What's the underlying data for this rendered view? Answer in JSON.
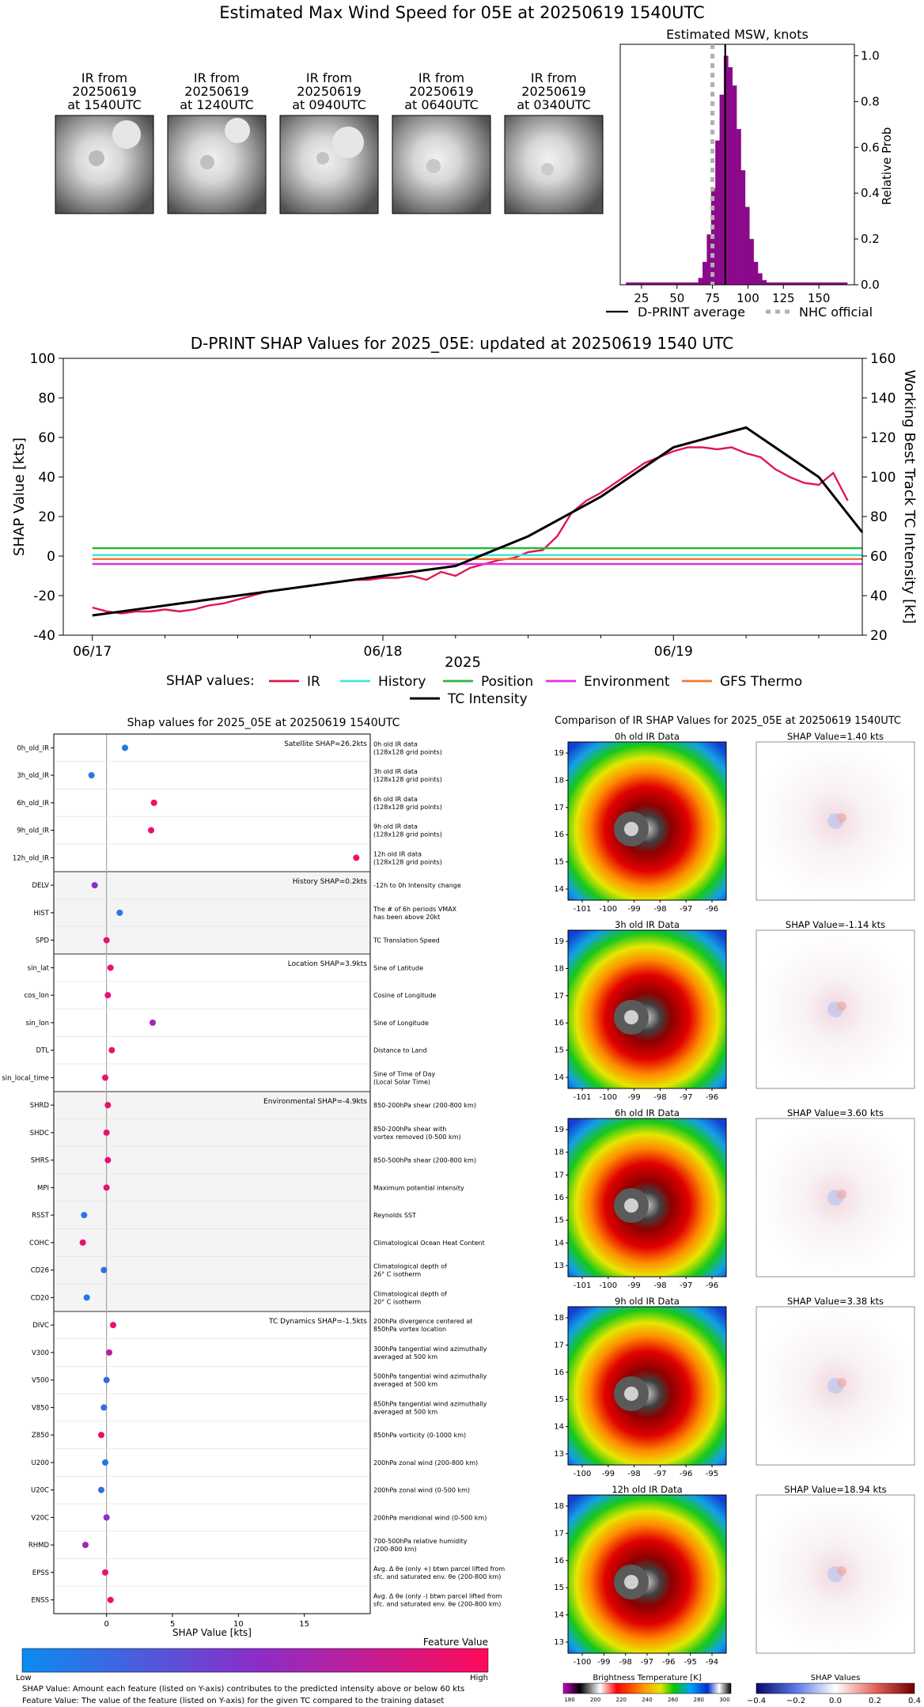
{
  "page": {
    "title": "Estimated Max Wind Speed for 05E at 20250619 1540UTC"
  },
  "ir_thumbnails": [
    {
      "line1": "IR from",
      "line2": "20250619",
      "line3": "at 1540UTC"
    },
    {
      "line1": "IR from",
      "line2": "20250619",
      "line3": "at 1240UTC"
    },
    {
      "line1": "IR from",
      "line2": "20250619",
      "line3": "at 0940UTC"
    },
    {
      "line1": "IR from",
      "line2": "20250619",
      "line3": "at 0640UTC"
    },
    {
      "line1": "IR from",
      "line2": "20250619",
      "line3": "at 0340UTC"
    }
  ],
  "msw": {
    "title": "Estimated MSW, knots",
    "right_label": "Relative Prob",
    "x_ticks": [
      "25",
      "50",
      "75",
      "100",
      "125",
      "150"
    ],
    "y_ticks": [
      "0.0",
      "0.2",
      "0.4",
      "0.6",
      "0.8",
      "1.0"
    ],
    "legend_avg": "D-PRINT average",
    "legend_nhc": "NHC official"
  },
  "timeseries": {
    "title": "D-PRINT SHAP Values for 2025_05E: updated at 20250619 1540 UTC",
    "ylabel_left": "SHAP Value [kts]",
    "ylabel_right": "Working Best Track TC Intensity [kt]",
    "xlabel": "2025",
    "left_ticks": [
      "-40",
      "-20",
      "0",
      "20",
      "40",
      "60",
      "80",
      "100"
    ],
    "right_ticks": [
      "20",
      "40",
      "60",
      "80",
      "100",
      "120",
      "140",
      "160"
    ],
    "x_ticks": [
      "06/17",
      "06/18",
      "06/19"
    ],
    "legend_title": "SHAP values:",
    "legend": [
      {
        "name": "IR",
        "color": "#e0174c"
      },
      {
        "name": "History",
        "color": "#44e2e2"
      },
      {
        "name": "Position",
        "color": "#2cb53c"
      },
      {
        "name": "Environment",
        "color": "#e030e0"
      },
      {
        "name": "GFS Thermo",
        "color": "#f07a30"
      },
      {
        "name": "TC Intensity",
        "color": "#000000"
      }
    ]
  },
  "shap_panel": {
    "title": "Shap values for 2025_05E at 20250619 1540UTC",
    "xlabel": "SHAP Value [kts]",
    "x_ticks": [
      "0",
      "5",
      "10",
      "15"
    ],
    "group_labels": [
      "Satellite SHAP=26.2kts",
      "History SHAP=0.2kts",
      "Location SHAP=3.9kts",
      "Environmental SHAP=-4.9kts",
      "TC Dynamics SHAP=-1.5kts"
    ],
    "features": [
      {
        "name": "0h_old_IR",
        "desc1": "0h old IR data",
        "desc2": "(128x128 grid points)"
      },
      {
        "name": "3h_old_IR",
        "desc1": "3h old IR data",
        "desc2": "(128x128 grid points)"
      },
      {
        "name": "6h_old_IR",
        "desc1": "6h old IR data",
        "desc2": "(128x128 grid points)"
      },
      {
        "name": "9h_old_IR",
        "desc1": "9h old IR data",
        "desc2": "(128x128 grid points)"
      },
      {
        "name": "12h_old_IR",
        "desc1": "12h old IR data",
        "desc2": "(128x128 grid points)"
      },
      {
        "name": "DELV",
        "desc1": "-12h to 0h Intensity change",
        "desc2": ""
      },
      {
        "name": "HIST",
        "desc1": "The # of 6h periods VMAX",
        "desc2": "has been above 20kt"
      },
      {
        "name": "SPD",
        "desc1": "TC Translation Speed",
        "desc2": ""
      },
      {
        "name": "sin_lat",
        "desc1": "Sine of Latitude",
        "desc2": ""
      },
      {
        "name": "cos_lon",
        "desc1": "Cosine of Longitude",
        "desc2": ""
      },
      {
        "name": "sin_lon",
        "desc1": "Sine of Longitude",
        "desc2": ""
      },
      {
        "name": "DTL",
        "desc1": "Distance to Land",
        "desc2": ""
      },
      {
        "name": "sin_local_time",
        "desc1": "Sine of Time of Day",
        "desc2": "(Local Solar Time)"
      },
      {
        "name": "SHRD",
        "desc1": "850-200hPa shear (200-800 km)",
        "desc2": ""
      },
      {
        "name": "SHDC",
        "desc1": "850-200hPa shear with",
        "desc2": "vortex removed (0-500 km)"
      },
      {
        "name": "SHRS",
        "desc1": "850-500hPa shear (200-800 km)",
        "desc2": ""
      },
      {
        "name": "MPI",
        "desc1": "Maximum potential intensity",
        "desc2": ""
      },
      {
        "name": "RSST",
        "desc1": "Reynolds SST",
        "desc2": ""
      },
      {
        "name": "COHC",
        "desc1": "Climatological Ocean Heat Content",
        "desc2": ""
      },
      {
        "name": "CD26",
        "desc1": "Climatological depth of",
        "desc2": "26° C isotherm"
      },
      {
        "name": "CD20",
        "desc1": "Climatological depth of",
        "desc2": "20° C isotherm"
      },
      {
        "name": "DIVC",
        "desc1": "200hPa divergence centered at",
        "desc2": "850hPa vortex location"
      },
      {
        "name": "V300",
        "desc1": "300hPa tangential wind azimuthally",
        "desc2": "averaged at 500 km"
      },
      {
        "name": "V500",
        "desc1": "500hPa tangential wind azimuthally",
        "desc2": "averaged at 500 km"
      },
      {
        "name": "V850",
        "desc1": "850hPa tangential wind azimuthally",
        "desc2": "averaged at 500 km"
      },
      {
        "name": "Z850",
        "desc1": "850hPa vorticity (0-1000 km)",
        "desc2": ""
      },
      {
        "name": "U200",
        "desc1": "200hPa zonal wind (200-800 km)",
        "desc2": ""
      },
      {
        "name": "U20C",
        "desc1": "200hPa zonal wind (0-500 km)",
        "desc2": ""
      },
      {
        "name": "V20C",
        "desc1": "200hPa meridional wind (0-500 km)",
        "desc2": ""
      },
      {
        "name": "RHMD",
        "desc1": "700-500hPa relative humidity",
        "desc2": "(200-800 km)"
      },
      {
        "name": "EPSS",
        "desc1": "Avg. Δ θe (only +) btwn parcel lifted from",
        "desc2": "sfc. and saturated env. θe (200-800 km)"
      },
      {
        "name": "ENSS",
        "desc1": "Avg. Δ θe (only -) btwn parcel lifted from",
        "desc2": "sfc. and saturated env. θe (200-800 km)"
      }
    ],
    "colorbar_title": "Feature Value",
    "colorbar_low": "Low",
    "colorbar_high": "High",
    "note1": "SHAP Value: Amount each feature (listed on Y-axis) contributes to the predicted intensity above or below 60 kts",
    "note2": "Feature Value: The value of the feature (listed on Y-axis) for the given TC compared to the training dataset"
  },
  "ir_comparison": {
    "title": "Comparison of IR SHAP Values for 2025_05E at 20250619 1540UTC",
    "rows": [
      {
        "ir_title": "0h old IR Data",
        "shap_title": "SHAP Value=1.40 kts",
        "yticks": [
          "19",
          "18",
          "17",
          "16",
          "15",
          "14"
        ],
        "xticks": [
          "-101",
          "-100",
          "-99",
          "-98",
          "-97",
          "-96"
        ]
      },
      {
        "ir_title": "3h old IR Data",
        "shap_title": "SHAP Value=-1.14 kts",
        "yticks": [
          "19",
          "18",
          "17",
          "16",
          "15",
          "14"
        ],
        "xticks": [
          "-101",
          "-100",
          "-99",
          "-98",
          "-97",
          "-96"
        ]
      },
      {
        "ir_title": "6h old IR Data",
        "shap_title": "SHAP Value=3.60 kts",
        "yticks": [
          "19",
          "18",
          "17",
          "16",
          "15",
          "14",
          "13"
        ],
        "xticks": [
          "-101",
          "-100",
          "-99",
          "-98",
          "-97",
          "-96"
        ]
      },
      {
        "ir_title": "9h old IR Data",
        "shap_title": "SHAP Value=3.38 kts",
        "yticks": [
          "18",
          "17",
          "16",
          "15",
          "14",
          "13"
        ],
        "xticks": [
          "-100",
          "-99",
          "-98",
          "-97",
          "-96",
          "-95"
        ]
      },
      {
        "ir_title": "12h old IR Data",
        "shap_title": "SHAP Value=18.94 kts",
        "yticks": [
          "18",
          "17",
          "16",
          "15",
          "14",
          "13"
        ],
        "xticks": [
          "-100",
          "-99",
          "-98",
          "-97",
          "-96",
          "-95",
          "-94"
        ]
      }
    ],
    "bt_title": "Brightness Temperature [K]",
    "bt_ticks": [
      "180",
      "200",
      "220",
      "240",
      "260",
      "280",
      "300"
    ],
    "sv_title": "SHAP Values",
    "sv_ticks": [
      "−0.4",
      "−0.2",
      "0.0",
      "0.2",
      "0.4"
    ]
  },
  "chart_data": [
    {
      "type": "bar",
      "title": "Estimated MSW, knots",
      "xlabel": "",
      "ylabel": "Relative Prob",
      "xlim": [
        10,
        175
      ],
      "ylim": [
        0,
        1.05
      ],
      "bin_width": 3,
      "bins": [
        14,
        17,
        20,
        23,
        26,
        29,
        32,
        35,
        38,
        41,
        44,
        47,
        50,
        53,
        56,
        59,
        62,
        65,
        68,
        71,
        74,
        77,
        80,
        83,
        86,
        89,
        92,
        95,
        98,
        101,
        104,
        107,
        110,
        113,
        116,
        119,
        122,
        125,
        128,
        131,
        134,
        137,
        140,
        143,
        146,
        149,
        152,
        155,
        158,
        161,
        164,
        167
      ],
      "values": [
        0.01,
        0.01,
        0.01,
        0.01,
        0.01,
        0.01,
        0.01,
        0.01,
        0.01,
        0.01,
        0.01,
        0.01,
        0.01,
        0.01,
        0.01,
        0.01,
        0.01,
        0.03,
        0.1,
        0.22,
        0.42,
        0.63,
        0.83,
        1.0,
        0.95,
        0.87,
        0.68,
        0.5,
        0.34,
        0.2,
        0.1,
        0.05,
        0.02,
        0.01,
        0.01,
        0.01,
        0.01,
        0.01,
        0.01,
        0.01,
        0.01,
        0.01,
        0.01,
        0.01,
        0.01,
        0.01,
        0.01,
        0.01,
        0.01,
        0.01,
        0.01,
        0.01
      ],
      "dpprint_average": 84,
      "nhc_official": 75,
      "bar_color": "#8b0a8b"
    },
    {
      "type": "line",
      "title": "D-PRINT SHAP Values for 2025_05E: updated at 20250619 1540 UTC",
      "xlabel": "2025",
      "ylabel": "SHAP Value [kts]",
      "ylabel_right": "Working Best Track TC Intensity [kt]",
      "x_unit": "days since 06/17 00UTC",
      "xlim": [
        -0.1,
        2.65
      ],
      "ylim": [
        -40,
        100
      ],
      "ylim_right": [
        20,
        160
      ],
      "series": [
        {
          "name": "IR",
          "x": [
            0.0,
            0.05,
            0.1,
            0.15,
            0.2,
            0.25,
            0.3,
            0.35,
            0.4,
            0.45,
            0.5,
            0.55,
            0.6,
            0.65,
            0.7,
            0.75,
            0.8,
            0.85,
            0.9,
            0.95,
            1.0,
            1.05,
            1.1,
            1.15,
            1.2,
            1.25,
            1.3,
            1.35,
            1.4,
            1.45,
            1.5,
            1.55,
            1.6,
            1.65,
            1.7,
            1.75,
            1.8,
            1.85,
            1.9,
            1.95,
            2.0,
            2.05,
            2.1,
            2.15,
            2.2,
            2.25,
            2.3,
            2.35,
            2.4,
            2.45,
            2.5,
            2.55,
            2.6
          ],
          "values": [
            -26,
            -28,
            -29,
            -28,
            -28,
            -27,
            -28,
            -27,
            -25,
            -24,
            -22,
            -20,
            -18,
            -17,
            -16,
            -15,
            -14,
            -13,
            -12,
            -12,
            -11,
            -11,
            -10,
            -12,
            -8,
            -10,
            -6,
            -4,
            -2,
            -1,
            2,
            3,
            10,
            22,
            28,
            32,
            37,
            42,
            47,
            50,
            53,
            55,
            55,
            54,
            55,
            52,
            50,
            44,
            40,
            37,
            36,
            42,
            28
          ]
        },
        {
          "name": "History",
          "values_const": 0.5
        },
        {
          "name": "Position",
          "values_const": 4
        },
        {
          "name": "Environment",
          "values_const": -4
        },
        {
          "name": "GFS Thermo",
          "values_const": -1.5
        },
        {
          "name": "TC Intensity",
          "axis": "right",
          "x": [
            0.0,
            0.5,
            1.0,
            1.25,
            1.5,
            1.75,
            2.0,
            2.25,
            2.5,
            2.65
          ],
          "values": [
            30,
            40,
            50,
            55,
            70,
            90,
            115,
            125,
            100,
            72
          ]
        }
      ]
    },
    {
      "type": "scatter",
      "title": "Shap values for 2025_05E at 20250619 1540UTC",
      "xlabel": "SHAP Value [kts]",
      "xlim": [
        -4,
        20
      ],
      "features": [
        "0h_old_IR",
        "3h_old_IR",
        "6h_old_IR",
        "9h_old_IR",
        "12h_old_IR",
        "DELV",
        "HIST",
        "SPD",
        "sin_lat",
        "cos_lon",
        "sin_lon",
        "DTL",
        "sin_local_time",
        "SHRD",
        "SHDC",
        "SHRS",
        "MPI",
        "RSST",
        "COHC",
        "CD26",
        "CD20",
        "DIVC",
        "V300",
        "V500",
        "V850",
        "Z850",
        "U200",
        "U20C",
        "V20C",
        "RHMD",
        "EPSS",
        "ENSS"
      ],
      "shap_values": [
        1.4,
        -1.14,
        3.6,
        3.38,
        18.94,
        -0.9,
        1.0,
        0.0,
        0.3,
        0.1,
        3.5,
        0.4,
        -0.1,
        0.1,
        0.0,
        0.1,
        0.0,
        -1.7,
        -1.8,
        -0.2,
        -1.5,
        0.5,
        0.2,
        0.0,
        -0.2,
        -0.4,
        -0.1,
        -0.4,
        0.0,
        -1.6,
        -0.1,
        0.3
      ],
      "feature_values": [
        0.1,
        0.1,
        0.95,
        0.9,
        0.95,
        0.5,
        0.1,
        0.9,
        0.9,
        0.9,
        0.6,
        0.9,
        0.9,
        0.9,
        0.9,
        0.9,
        0.9,
        0.1,
        0.9,
        0.15,
        0.1,
        0.9,
        0.7,
        0.2,
        0.15,
        0.95,
        0.1,
        0.15,
        0.5,
        0.6,
        0.9,
        0.9
      ]
    }
  ]
}
